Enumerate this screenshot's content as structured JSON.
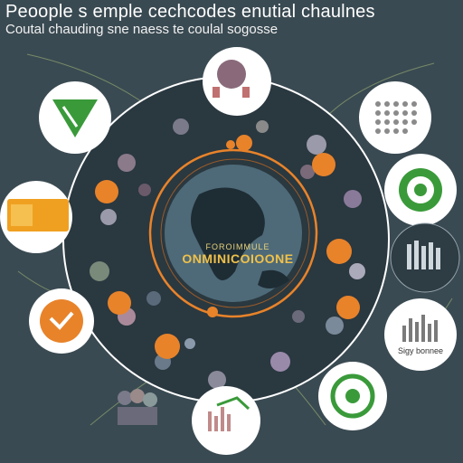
{
  "header": {
    "headline": "Peoople s emple cechcodes enutial chaulnes",
    "subline": "Coutal chauding sne naess te coulal sogosse"
  },
  "center": {
    "small_label": "FOROIMMULE",
    "big_label": "ONMINICOIOONE"
  },
  "tiles": {
    "bottom_right_caption": "Sigy bonnee"
  },
  "colors": {
    "background": "#3a4a52",
    "accent_orange": "#e8832a",
    "accent_green": "#3a9a3a",
    "ring_outline": "#ffffff"
  }
}
